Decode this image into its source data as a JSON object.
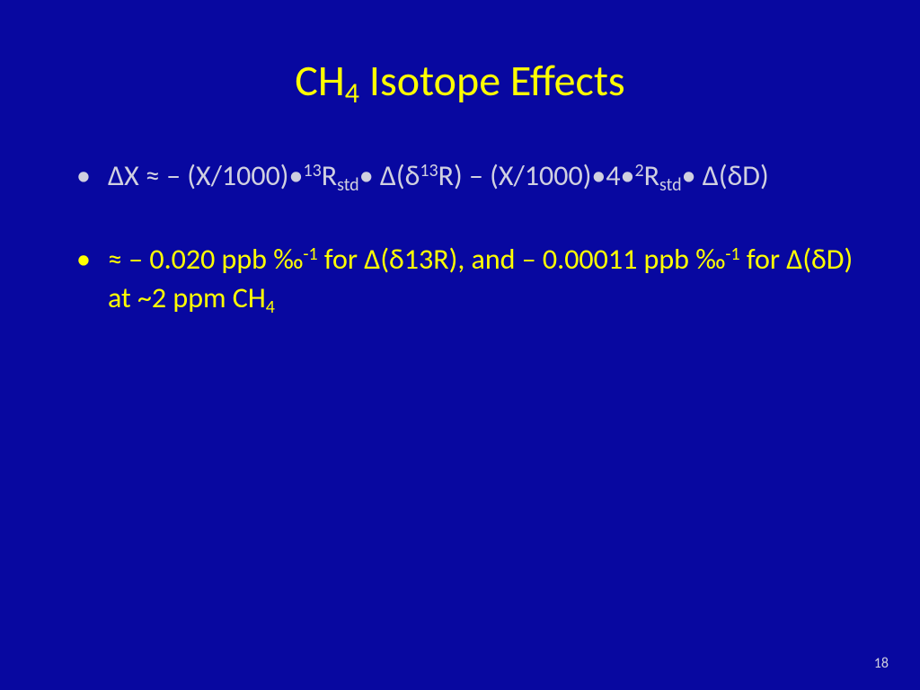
{
  "slide": {
    "background_color": "#0808a0",
    "title_color": "#ffff00",
    "bullet1_color": "#d0d0e0",
    "bullet2_color": "#ffff00",
    "page_number_color": "#d0d0e0",
    "title_fontsize": 48,
    "body_fontsize": 32,
    "title": {
      "prefix": "CH",
      "sub": "4",
      "suffix": " Isotope Effects"
    },
    "bullets": [
      {
        "parts": [
          {
            "t": "text",
            "v": "ΔX ≈ – (X/1000)•"
          },
          {
            "t": "sup",
            "v": "13"
          },
          {
            "t": "text",
            "v": "R"
          },
          {
            "t": "sub",
            "v": "std"
          },
          {
            "t": "text",
            "v": "• Δ(δ"
          },
          {
            "t": "sup",
            "v": "13"
          },
          {
            "t": "text",
            "v": "R) – (X/1000)•4•"
          },
          {
            "t": "sup",
            "v": "2"
          },
          {
            "t": "text",
            "v": "R"
          },
          {
            "t": "sub",
            "v": "std"
          },
          {
            "t": "text",
            "v": "• Δ(δD)"
          }
        ]
      },
      {
        "parts": [
          {
            "t": "text",
            "v": "≈ – 0.020 ppb ‰"
          },
          {
            "t": "sup",
            "v": "-1"
          },
          {
            "t": "text",
            "v": " for Δ(δ13R), and – 0.00011 ppb ‰"
          },
          {
            "t": "sup",
            "v": "-1"
          },
          {
            "t": "text",
            "v": " for Δ(δD) at ~2 ppm CH"
          },
          {
            "t": "sub",
            "v": "4"
          }
        ]
      }
    ],
    "page_number": "18"
  }
}
